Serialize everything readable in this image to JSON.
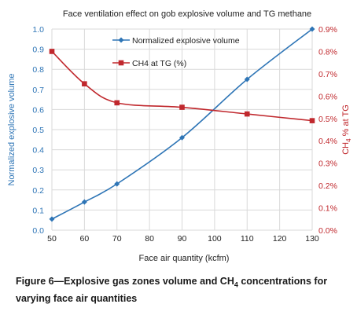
{
  "chart_data": {
    "type": "line",
    "title": "Face ventilation effect on gob explosive volume and TG methane",
    "xlabel": "Face air quantity (kcfm)",
    "ylabel": "Normalized explosive volume",
    "y2label": "CH₄ % at TG",
    "xlim": [
      50,
      130
    ],
    "ylim": [
      0.0,
      1.0
    ],
    "y2lim": [
      0.0,
      0.9
    ],
    "x_ticks": [
      "50",
      "60",
      "70",
      "80",
      "90",
      "100",
      "110",
      "120",
      "130"
    ],
    "y_ticks": [
      "0.0",
      "0.1",
      "0.2",
      "0.3",
      "0.4",
      "0.5",
      "0.6",
      "0.7",
      "0.8",
      "0.9",
      "1.0"
    ],
    "y2_ticks": [
      "0.0%",
      "0.1%",
      "0.2%",
      "0.3%",
      "0.4%",
      "0.5%",
      "0.6%",
      "0.7%",
      "0.8%",
      "0.9%"
    ],
    "grid": true,
    "legend_position": "top-center",
    "series": [
      {
        "name": "Normalized explosive volume",
        "axis": "left",
        "color": "#2e75b6",
        "marker": "diamond",
        "x": [
          50,
          60,
          70,
          90,
          110,
          130
        ],
        "values": [
          0.055,
          0.14,
          0.23,
          0.46,
          0.75,
          1.0
        ]
      },
      {
        "name": "CH4 at TG (%)",
        "axis": "right",
        "color": "#c0282d",
        "marker": "square",
        "x": [
          50,
          60,
          70,
          90,
          110,
          130
        ],
        "values": [
          0.8,
          0.655,
          0.57,
          0.55,
          0.52,
          0.49
        ]
      }
    ]
  },
  "caption": {
    "prefix": "Figure 6—Explosive gas zones volume and CH",
    "sub": "4",
    "suffix": " concentrations for varying face air quantities"
  }
}
